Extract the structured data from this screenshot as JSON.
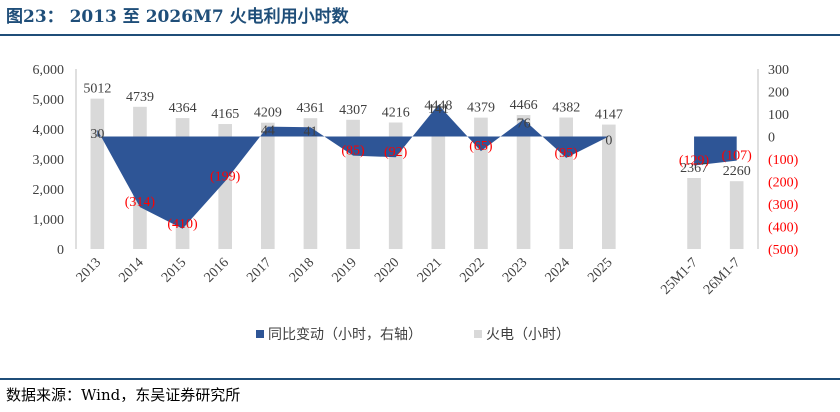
{
  "header": {
    "title": "图23：  2013 至 2026M7 火电利用小时数"
  },
  "footer": {
    "source": "数据来源：Wind，东吴证券研究所"
  },
  "colors": {
    "title": "#1f4e79",
    "area": "#2e5596",
    "bars": "#d9d9d9",
    "negative_label": "#ff0000",
    "axis_text": "#595959"
  },
  "chart_data": {
    "type": "bar",
    "categories": [
      "2013",
      "2014",
      "2015",
      "2016",
      "2017",
      "2018",
      "2019",
      "2020",
      "2021",
      "2022",
      "2023",
      "2024",
      "2025",
      "",
      "25M1-7",
      "26M1-7"
    ],
    "left_axis": {
      "min": 0,
      "max": 6000,
      "ticks": [
        "0",
        "1,000",
        "2,000",
        "3,000",
        "4,000",
        "5,000",
        "6,000"
      ]
    },
    "right_axis": {
      "min": -500,
      "max": 300,
      "ticks": [
        "(500)",
        "(400)",
        "(300)",
        "(200)",
        "(100)",
        "0",
        "100",
        "200",
        "300"
      ]
    },
    "grid": false,
    "legend_position": "bottom",
    "series": [
      {
        "name": "同比变动（小时，右轴）",
        "type": "area",
        "axis": "right",
        "values": [
          30,
          -314,
          -410,
          -199,
          44,
          41,
          -85,
          -92,
          141,
          -65,
          76,
          -95,
          0,
          null,
          -129,
          -107
        ],
        "labels": [
          "30",
          "(314)",
          "(410)",
          "(199)",
          "44",
          "41",
          "(85)",
          "(92)",
          "141",
          "(65)",
          "76",
          "(95)",
          "0",
          "",
          "(129)",
          "(107)"
        ]
      },
      {
        "name": "火电（小时）",
        "type": "bar",
        "axis": "left",
        "values": [
          5012,
          4739,
          4364,
          4165,
          4209,
          4361,
          4307,
          4216,
          4448,
          4379,
          4466,
          4382,
          4147,
          null,
          2367,
          2260
        ],
        "labels": [
          "5012",
          "4739",
          "4364",
          "4165",
          "4209",
          "4361",
          "4307",
          "4216",
          "4448",
          "4379",
          "4466",
          "4382",
          "4147",
          "",
          "2367",
          "2260"
        ]
      }
    ]
  }
}
